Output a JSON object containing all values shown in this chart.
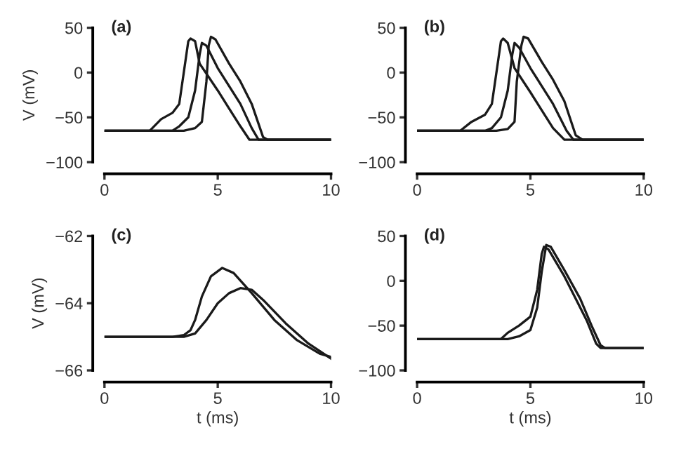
{
  "chart_data": [
    {
      "type": "line",
      "annotations": [
        "(a)"
      ],
      "ylabel": "V (mV)",
      "xlim": [
        0,
        10
      ],
      "xticks": [
        0,
        5,
        10
      ],
      "ylim": [
        -100,
        50
      ],
      "yticks": [
        -100,
        -50,
        0,
        50
      ],
      "grid": false,
      "legend": false,
      "line_style": "solid",
      "marker": "none",
      "series": [
        {
          "color": "#1a1a1a",
          "x": [
            0,
            2,
            2.5,
            3,
            3.3,
            3.5,
            3.7,
            3.8,
            4.0,
            4.2,
            5.0,
            5.5,
            6.0,
            6.4,
            7,
            10
          ],
          "values": [
            -65,
            -65,
            -52,
            -45,
            -35,
            0,
            35,
            38,
            35,
            10,
            -20,
            -40,
            -60,
            -75,
            -75,
            -75
          ]
        },
        {
          "color": "#1a1a1a",
          "x": [
            0,
            3,
            3.3,
            3.7,
            4.0,
            4.2,
            4.3,
            4.5,
            5.0,
            5.5,
            6,
            6.5,
            6.8,
            10
          ],
          "values": [
            -65,
            -65,
            -60,
            -50,
            -20,
            20,
            33,
            30,
            5,
            -15,
            -35,
            -62,
            -75,
            -75
          ]
        },
        {
          "color": "#1a1a1a",
          "x": [
            0,
            3.5,
            4,
            4.3,
            4.5,
            4.6,
            4.7,
            4.9,
            5.5,
            6,
            6.5,
            7,
            7.2,
            10
          ],
          "values": [
            -65,
            -65,
            -62,
            -55,
            -10,
            30,
            40,
            37,
            10,
            -10,
            -35,
            -72,
            -75,
            -75
          ]
        }
      ]
    },
    {
      "type": "line",
      "annotations": [
        "(b)"
      ],
      "xlim": [
        0,
        10
      ],
      "xticks": [
        0,
        5,
        10
      ],
      "ylim": [
        -100,
        50
      ],
      "yticks": [
        -100,
        -50,
        0,
        50
      ],
      "grid": false,
      "legend": false,
      "line_style": "solid",
      "marker": "none",
      "series": [
        {
          "color": "#1a1a1a",
          "x": [
            0,
            1.9,
            2.4,
            3,
            3.3,
            3.5,
            3.7,
            3.8,
            4.0,
            4.3,
            5.0,
            5.5,
            6.0,
            6.5,
            7,
            10
          ],
          "values": [
            -65,
            -65,
            -55,
            -47,
            -35,
            0,
            35,
            38,
            33,
            5,
            -22,
            -42,
            -62,
            -75,
            -75,
            -75
          ]
        },
        {
          "color": "#1a1a1a",
          "x": [
            0,
            3,
            3.3,
            3.7,
            4.0,
            4.2,
            4.3,
            4.5,
            5.0,
            5.5,
            6,
            6.6,
            6.9,
            10
          ],
          "values": [
            -65,
            -65,
            -62,
            -50,
            -20,
            20,
            33,
            28,
            5,
            -15,
            -35,
            -65,
            -75,
            -75
          ]
        },
        {
          "color": "#1a1a1a",
          "x": [
            0,
            3.5,
            4,
            4.3,
            4.4,
            4.6,
            4.7,
            4.9,
            5.5,
            6,
            6.5,
            7,
            7.3,
            10
          ],
          "values": [
            -65,
            -65,
            -63,
            -55,
            -10,
            30,
            40,
            38,
            12,
            -8,
            -32,
            -70,
            -75,
            -75
          ]
        }
      ]
    },
    {
      "type": "line",
      "annotations": [
        "(c)"
      ],
      "ylabel": "V (mV)",
      "xlabel": "t (ms)",
      "xlim": [
        0,
        10
      ],
      "xticks": [
        0,
        5,
        10
      ],
      "ylim": [
        -66,
        -62
      ],
      "yticks": [
        -66,
        -64,
        -62
      ],
      "grid": false,
      "legend": false,
      "line_style": "solid",
      "marker": "none",
      "series": [
        {
          "color": "#1a1a1a",
          "x": [
            0,
            3,
            3.5,
            3.8,
            4.0,
            4.3,
            4.7,
            5.2,
            5.7,
            6.5,
            7.5,
            8.5,
            9.5,
            10
          ],
          "values": [
            -65,
            -65,
            -64.95,
            -64.8,
            -64.5,
            -63.8,
            -63.2,
            -62.95,
            -63.1,
            -63.7,
            -64.5,
            -65.1,
            -65.5,
            -65.6
          ]
        },
        {
          "color": "#1a1a1a",
          "x": [
            0,
            3.5,
            4,
            4.5,
            5,
            5.5,
            6,
            6.5,
            7,
            8,
            9,
            10
          ],
          "values": [
            -65,
            -65,
            -64.9,
            -64.5,
            -64.0,
            -63.7,
            -63.55,
            -63.6,
            -63.9,
            -64.6,
            -65.2,
            -65.65
          ]
        }
      ]
    },
    {
      "type": "line",
      "annotations": [
        "(d)"
      ],
      "xlabel": "t (ms)",
      "xlim": [
        0,
        10
      ],
      "xticks": [
        0,
        5,
        10
      ],
      "ylim": [
        -100,
        50
      ],
      "yticks": [
        -100,
        -50,
        0,
        50
      ],
      "grid": false,
      "legend": false,
      "line_style": "solid",
      "marker": "none",
      "series": [
        {
          "color": "#1a1a1a",
          "x": [
            0,
            3.7,
            4.0,
            4.5,
            5.0,
            5.3,
            5.5,
            5.6,
            5.8,
            6.5,
            7.0,
            7.5,
            7.9,
            8.1,
            10
          ],
          "values": [
            -65,
            -65,
            -58,
            -50,
            -40,
            -10,
            30,
            38,
            35,
            5,
            -20,
            -45,
            -70,
            -75,
            -75
          ]
        },
        {
          "color": "#1a1a1a",
          "x": [
            0,
            4,
            4.5,
            5.0,
            5.3,
            5.5,
            5.7,
            5.9,
            6.5,
            7.2,
            7.7,
            8.1,
            8.3,
            10
          ],
          "values": [
            -65,
            -65,
            -62,
            -55,
            -30,
            10,
            40,
            38,
            12,
            -20,
            -50,
            -72,
            -75,
            -75
          ]
        }
      ]
    }
  ]
}
